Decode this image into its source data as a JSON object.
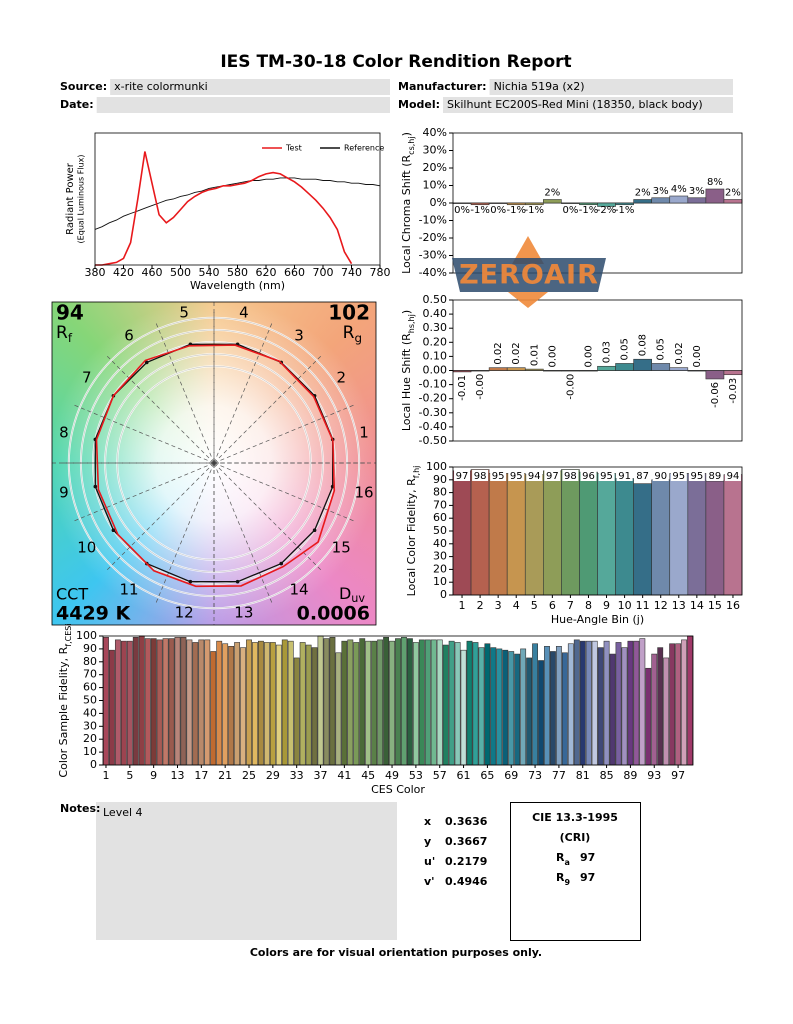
{
  "header": {
    "title": "IES TM-30-18 Color Rendition Report",
    "fields": [
      {
        "label": "Source:",
        "value": "x-rite colormunki"
      },
      {
        "label": "Manufacturer:",
        "value": "Nichia 519a (x2)"
      },
      {
        "label": "Date:"
      },
      {
        "label": "Model:",
        "value": "Skilhunt EC200S-Red Mini (18350, black body)"
      }
    ]
  },
  "chart_data": [
    {
      "type": "line",
      "xlabel": "Wavelength (nm)",
      "ylabel": "Radiant Power",
      "ylabel_note": "(Equal Luminous Flux)",
      "x": [
        380,
        390,
        400,
        410,
        420,
        430,
        440,
        450,
        460,
        470,
        480,
        490,
        500,
        510,
        520,
        530,
        540,
        550,
        560,
        570,
        580,
        590,
        600,
        610,
        620,
        630,
        640,
        650,
        660,
        670,
        680,
        690,
        700,
        710,
        720,
        730,
        740,
        750,
        760,
        770,
        780
      ],
      "series": [
        {
          "name": "Test",
          "color": "#e8191c",
          "values": [
            0,
            0,
            0.01,
            0.02,
            0.05,
            0.17,
            0.5,
            0.86,
            0.62,
            0.38,
            0.32,
            0.36,
            0.42,
            0.48,
            0.52,
            0.55,
            0.57,
            0.58,
            0.6,
            0.6,
            0.61,
            0.62,
            0.64,
            0.67,
            0.69,
            0.7,
            0.69,
            0.66,
            0.63,
            0.59,
            0.54,
            0.49,
            0.43,
            0.36,
            0.27,
            0.1,
            0.01,
            null,
            null,
            null,
            null
          ]
        },
        {
          "name": "Reference",
          "color": "#111111",
          "values": [
            0.27,
            0.29,
            0.32,
            0.34,
            0.37,
            0.39,
            0.41,
            0.43,
            0.45,
            0.47,
            0.49,
            0.5,
            0.52,
            0.53,
            0.55,
            0.56,
            0.58,
            0.59,
            0.6,
            0.61,
            0.62,
            0.63,
            0.64,
            0.64,
            0.65,
            0.65,
            0.66,
            0.66,
            0.66,
            0.65,
            0.65,
            0.65,
            0.64,
            0.64,
            0.63,
            0.63,
            0.62,
            0.62,
            0.61,
            0.61,
            0.6
          ]
        }
      ],
      "xlim": [
        380,
        780
      ],
      "xticks": [
        380,
        420,
        460,
        500,
        540,
        580,
        620,
        660,
        700,
        740,
        780
      ],
      "ylim": [
        0,
        1
      ],
      "legend": "upper right"
    },
    {
      "type": "bar",
      "ylabel": "Local Chroma Shift (R",
      "ylabel_sub": "cs,hj",
      "ylabel_end": ")",
      "values": [
        0,
        -1,
        0,
        -1,
        -1,
        2,
        0,
        -1,
        -2,
        -1,
        2,
        3,
        4,
        3,
        8,
        2
      ],
      "value_labels": [
        "0%",
        "-1%",
        "0%",
        "-1%",
        "-1%",
        "2%",
        "0%",
        "-1%",
        "-2%",
        "-1%",
        "2%",
        "3%",
        "4%",
        "3%",
        "8%",
        "2%"
      ],
      "colors": [
        "#9e4a55",
        "#b5614f",
        "#c07a4a",
        "#c6954f",
        "#a99b58",
        "#8e9d58",
        "#6e9a5f",
        "#4f9a74",
        "#55a89a",
        "#3d8a8f",
        "#356e88",
        "#6f89ab",
        "#9aa8cc",
        "#7b6e98",
        "#8a5f88",
        "#b8738f"
      ],
      "ylim": [
        -40,
        40
      ],
      "yticks": [
        {
          "value": 40,
          "label": "40%"
        },
        {
          "value": 30,
          "label": "30%"
        },
        {
          "value": 20,
          "label": "20%"
        },
        {
          "value": 10,
          "label": "10%"
        },
        {
          "value": 0,
          "label": "0%"
        },
        {
          "value": -10,
          "label": "-10%"
        },
        {
          "value": -20,
          "label": "-20%"
        },
        {
          "value": -30,
          "label": "-30%"
        },
        {
          "value": -40,
          "label": "-40%"
        }
      ]
    },
    {
      "type": "bar",
      "ylabel": "Local Hue Shift (R",
      "ylabel_sub": "hs,hj",
      "ylabel_end": ")",
      "values": [
        -0.01,
        -0.002,
        0.02,
        0.02,
        0.01,
        0,
        -0.002,
        0,
        0.03,
        0.05,
        0.08,
        0.05,
        0.02,
        0,
        -0.06,
        -0.03
      ],
      "value_labels": [
        "-0.01",
        "-0.00",
        "0.02",
        "0.02",
        "0.01",
        "0.00",
        "-0.00",
        "0.00",
        "0.03",
        "0.05",
        "0.08",
        "0.05",
        "0.02",
        "0.00",
        "-0.06",
        "-0.03"
      ],
      "colors": [
        "#9e4a55",
        "#b5614f",
        "#c07a4a",
        "#c6954f",
        "#a99b58",
        "#8e9d58",
        "#6e9a5f",
        "#4f9a74",
        "#55a89a",
        "#3d8a8f",
        "#356e88",
        "#6f89ab",
        "#9aa8cc",
        "#7b6e98",
        "#8a5f88",
        "#b8738f"
      ],
      "ylim": [
        -0.5,
        0.5
      ],
      "yticks": [
        {
          "value": 0.5,
          "label": "0.50"
        },
        {
          "value": 0.4,
          "label": "0.40"
        },
        {
          "value": 0.3,
          "label": "0.30"
        },
        {
          "value": 0.2,
          "label": "0.20"
        },
        {
          "value": 0.1,
          "label": "0.10"
        },
        {
          "value": 0,
          "label": "0.00"
        },
        {
          "value": -0.1,
          "label": "-0.10"
        },
        {
          "value": -0.2,
          "label": "-0.20"
        },
        {
          "value": -0.3,
          "label": "-0.30"
        },
        {
          "value": -0.4,
          "label": "-0.40"
        },
        {
          "value": -0.5,
          "label": "-0.50"
        }
      ]
    },
    {
      "type": "bar",
      "ylabel": "Local Color Fidelity, R",
      "ylabel_sub": "f,hj",
      "xlabel": "Hue-Angle Bin (j)",
      "categories": [
        1,
        2,
        3,
        4,
        5,
        6,
        7,
        8,
        9,
        10,
        11,
        12,
        13,
        14,
        15,
        16
      ],
      "values": [
        97,
        98,
        95,
        95,
        94,
        97,
        98,
        96,
        95,
        91,
        87,
        90,
        95,
        95,
        89,
        94
      ],
      "colors": [
        "#9e4a55",
        "#b5614f",
        "#c07a4a",
        "#c6954f",
        "#a99b58",
        "#8e9d58",
        "#6e9a5f",
        "#4f9a74",
        "#55a89a",
        "#3d8a8f",
        "#356e88",
        "#6f89ab",
        "#9aa8cc",
        "#7b6e98",
        "#8a5f88",
        "#b8738f"
      ],
      "ylim": [
        0,
        100
      ],
      "yticks": [
        0,
        10,
        20,
        30,
        40,
        50,
        60,
        70,
        80,
        90,
        100
      ]
    },
    {
      "type": "color_vector",
      "rf": 94,
      "rf_symbol": "R",
      "rf_sub": "f",
      "rg": 102,
      "rg_symbol": "R",
      "rg_sub": "g",
      "cct_label": "CCT",
      "cct": "4429 K",
      "duv_symbol": "D",
      "duv_sub": "uv",
      "duv": 0.0006,
      "hue_bin_labels": [
        1,
        2,
        3,
        4,
        5,
        6,
        7,
        8,
        9,
        10,
        11,
        12,
        13,
        14,
        15,
        16
      ],
      "test_color": "#e8191c",
      "reference_color": "#111111"
    },
    {
      "type": "bar",
      "ylabel": "Color Sample Fidelity, R",
      "ylabel_sub": "f,CESi",
      "xlabel": "CES Color",
      "categories": [
        1,
        null,
        null,
        null,
        5,
        null,
        null,
        null,
        9,
        null,
        null,
        null,
        13,
        null,
        null,
        null,
        17,
        null,
        null,
        null,
        21,
        null,
        null,
        null,
        25,
        null,
        null,
        null,
        29,
        null,
        null,
        null,
        33,
        null,
        null,
        null,
        37,
        null,
        null,
        null,
        41,
        null,
        null,
        null,
        45,
        null,
        null,
        null,
        49,
        null,
        null,
        null,
        53,
        null,
        null,
        null,
        57,
        null,
        null,
        null,
        61,
        null,
        null,
        null,
        65,
        null,
        null,
        null,
        69,
        null,
        null,
        null,
        73,
        null,
        null,
        null,
        77,
        null,
        null,
        null,
        81,
        null,
        null,
        null,
        85,
        null,
        null,
        null,
        89,
        null,
        null,
        null,
        93,
        null,
        null,
        null,
        97,
        null,
        null
      ],
      "values": [
        99,
        89,
        97,
        96,
        96,
        99,
        100,
        98,
        98,
        97,
        98,
        98,
        99,
        99,
        97,
        95,
        97,
        97,
        88,
        96,
        94,
        92,
        95,
        91,
        97,
        95,
        96,
        95,
        95,
        93,
        97,
        96,
        83,
        95,
        93,
        91,
        100,
        98,
        99,
        87,
        96,
        97,
        95,
        98,
        96,
        96,
        97,
        99,
        96,
        98,
        99,
        98,
        95,
        97,
        97,
        97,
        97,
        93,
        96,
        95,
        89,
        96,
        95,
        91,
        94,
        91,
        90,
        89,
        88,
        86,
        90,
        83,
        94,
        81,
        92,
        88,
        92,
        87,
        94,
        97,
        96,
        96,
        96,
        91,
        96,
        86,
        95,
        91,
        96,
        96,
        98,
        75,
        86,
        91,
        83,
        94,
        94,
        97,
        100
      ],
      "colors": [
        "#a8475a",
        "#8c3a48",
        "#b05a6a",
        "#9d4450",
        "#a65360",
        "#7a3a40",
        "#8e3f45",
        "#b2595c",
        "#7c3b38",
        "#a85a55",
        "#c07868",
        "#9a5a4e",
        "#b8857a",
        "#8e6256",
        "#c49a88",
        "#a26c52",
        "#b9896a",
        "#d49a70",
        "#c06a30",
        "#d88a4a",
        "#e0a060",
        "#b07848",
        "#caa070",
        "#d8b080",
        "#c8a050",
        "#e0b860",
        "#a88a40",
        "#d0b870",
        "#b8a040",
        "#e0d080",
        "#a89838",
        "#c8c070",
        "#8a8440",
        "#b0b060",
        "#9a9c50",
        "#707040",
        "#c0c890",
        "#888c60",
        "#6a7040",
        "#a8b080",
        "#5a7038",
        "#8aa060",
        "#7a9a58",
        "#4a6a38",
        "#a0c088",
        "#5a8048",
        "#709868",
        "#3a6038",
        "#88b080",
        "#4a8050",
        "#60a070",
        "#2a6040",
        "#90c8a0",
        "#3a8858",
        "#50a078",
        "#70b890",
        "#a8d8c0",
        "#208060",
        "#40a088",
        "#88c8b8",
        "#c0e0d8",
        "#108070",
        "#30a098",
        "#58b0a8",
        "#006870",
        "#107888",
        "#2890a0",
        "#0a6078",
        "#4898a8",
        "#186880",
        "#70a8b8",
        "#205870",
        "#3880a0",
        "#104870",
        "#5890b8",
        "#284868",
        "#80a0c0",
        "#386898",
        "#a0b8d8",
        "#506890",
        "#283870",
        "#7888b8",
        "#c0c8e0",
        "#404878",
        "#9090c0",
        "#503870",
        "#7860a0",
        "#a090c0",
        "#683880",
        "#905898",
        "#c0a0c8",
        "#7a3070",
        "#a06090",
        "#583050",
        "#c090b0",
        "#883860",
        "#b06080",
        "#d0a0b8",
        "#a03868"
      ],
      "ylim": [
        0,
        100
      ],
      "yticks": [
        0,
        10,
        20,
        30,
        40,
        50,
        60,
        70,
        80,
        90,
        100
      ]
    }
  ],
  "watermark": "ZEROAIR",
  "notes": {
    "label": "Notes:",
    "text": "Level 4"
  },
  "colorimetry": [
    {
      "label": "x",
      "value": 0.3636
    },
    {
      "label": "y",
      "value": 0.3667
    },
    {
      "label": "u'",
      "value": 0.2179
    },
    {
      "label": "v'",
      "value": 0.4946
    }
  ],
  "cri": {
    "title": "CIE 13.3-1995",
    "subtitle": "(CRI)",
    "rows": [
      {
        "symbol": "R",
        "sub": "a",
        "value": 97
      },
      {
        "symbol": "R",
        "sub": "9",
        "value": 97
      }
    ]
  },
  "footer": "Colors are for visual orientation purposes only."
}
